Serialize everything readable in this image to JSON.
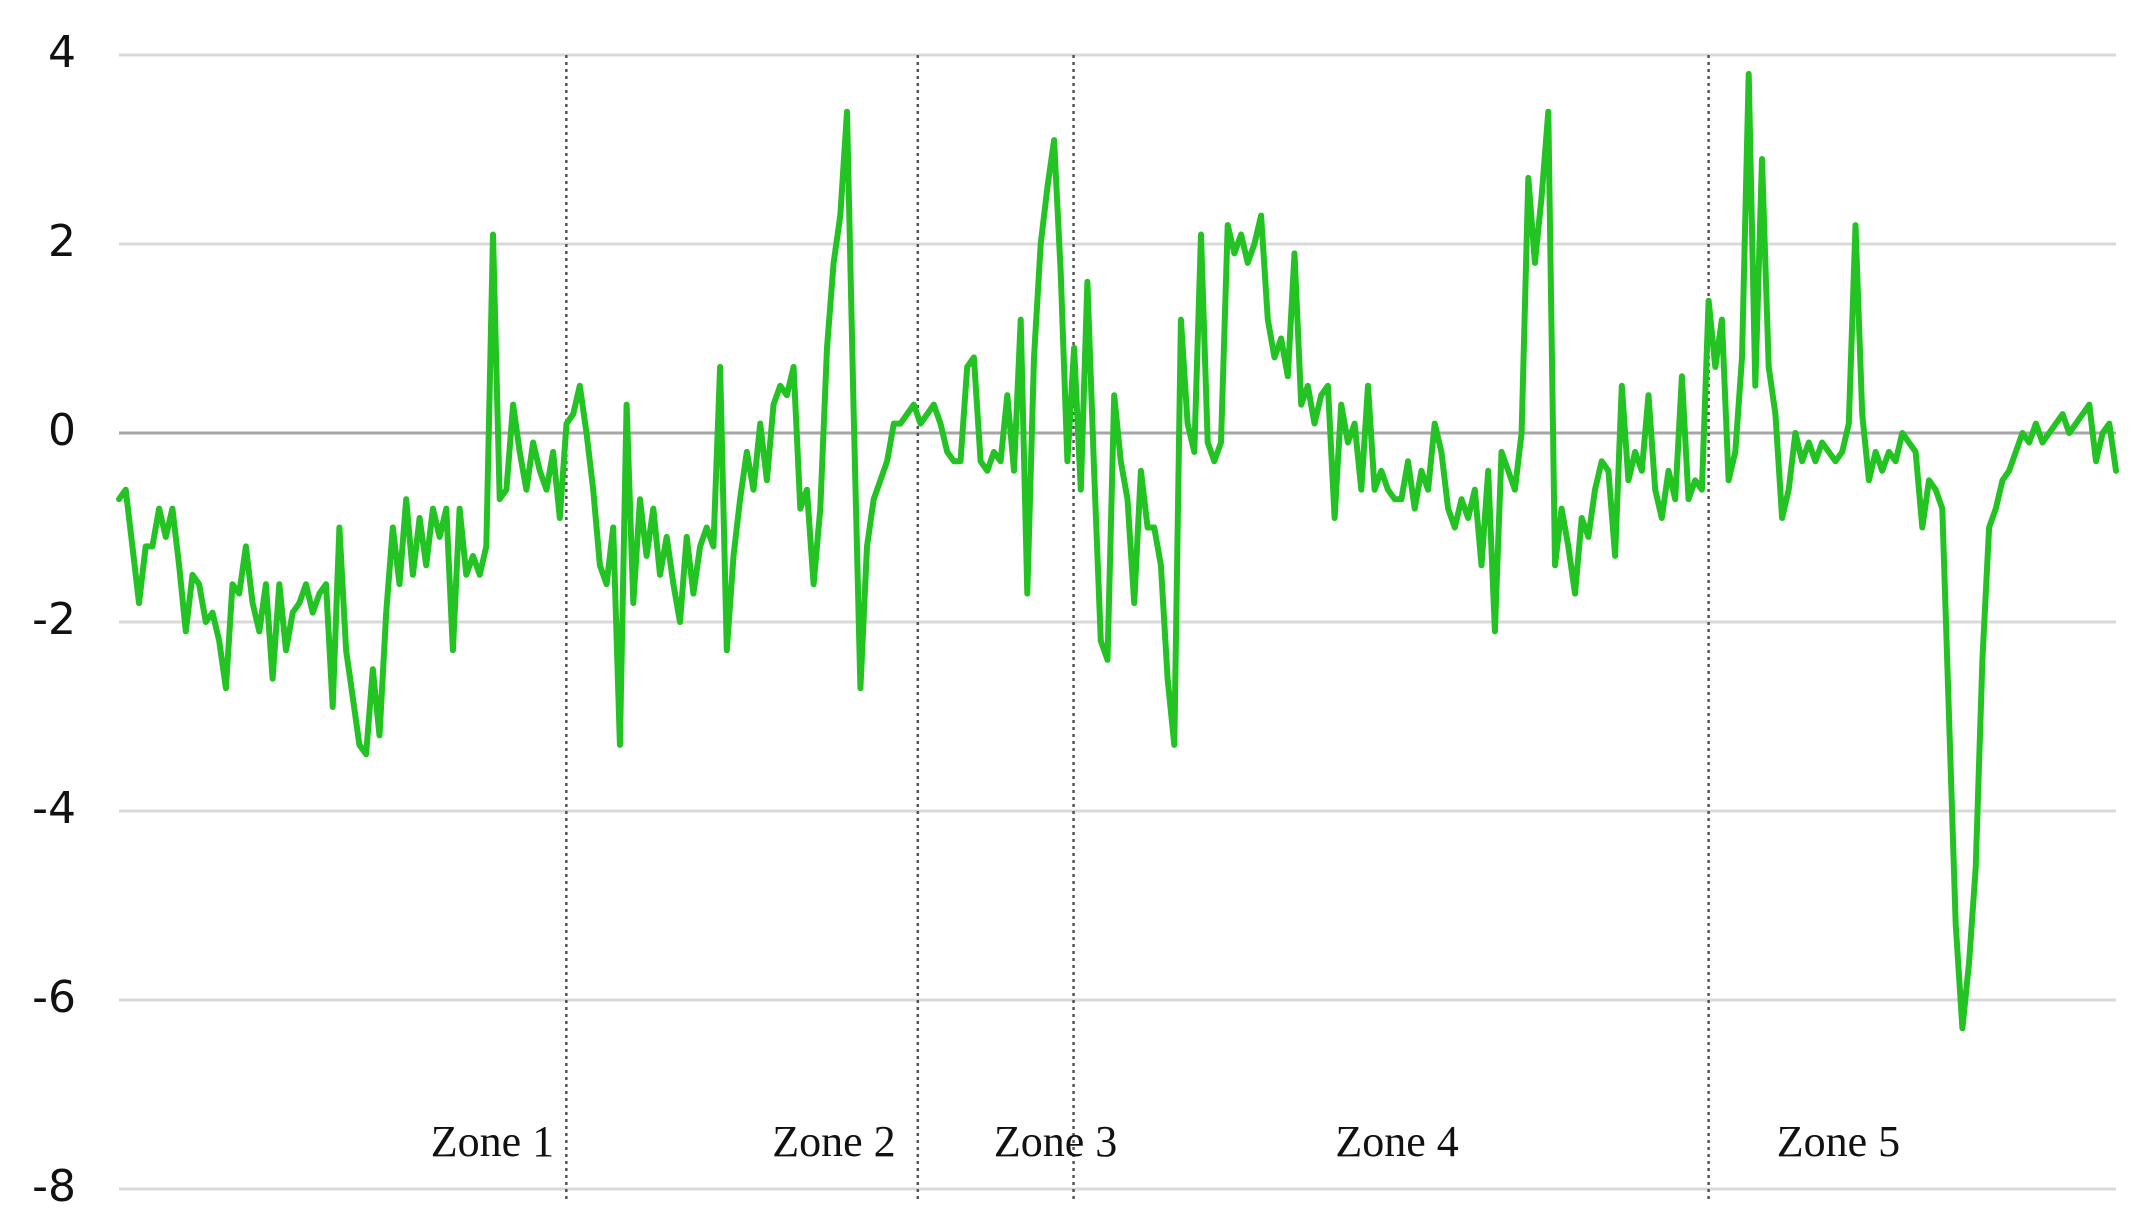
{
  "chart_data": {
    "type": "line",
    "color": "#22c322",
    "ylim": [
      -8,
      4
    ],
    "yticks": [
      -8,
      -6,
      -4,
      -2,
      0,
      2,
      4
    ],
    "grid": true,
    "annotations": [
      "Zone 1",
      "Zone 2",
      "Zone 3",
      "Zone 4",
      "Zone 5"
    ],
    "values": [
      -0.7,
      -0.6,
      -1.2,
      -1.8,
      -1.2,
      -1.2,
      -0.8,
      -1.1,
      -0.8,
      -1.4,
      -2.1,
      -1.5,
      -1.6,
      -2.0,
      -1.9,
      -2.2,
      -2.7,
      -1.6,
      -1.7,
      -1.2,
      -1.8,
      -2.1,
      -1.6,
      -2.6,
      -1.6,
      -2.3,
      -1.9,
      -1.8,
      -1.6,
      -1.9,
      -1.7,
      -1.6,
      -2.9,
      -1.0,
      -2.3,
      -2.8,
      -3.3,
      -3.4,
      -2.5,
      -3.2,
      -1.9,
      -1.0,
      -1.6,
      -0.7,
      -1.5,
      -0.9,
      -1.4,
      -0.8,
      -1.1,
      -0.8,
      -2.3,
      -0.8,
      -1.5,
      -1.3,
      -1.5,
      -1.2,
      2.1,
      -0.7,
      -0.6,
      0.3,
      -0.2,
      -0.6,
      -0.1,
      -0.4,
      -0.6,
      -0.2,
      -0.9,
      0.1,
      0.2,
      0.5,
      0.0,
      -0.6,
      -1.4,
      -1.6,
      -1.0,
      -3.3,
      0.3,
      -1.8,
      -0.7,
      -1.3,
      -0.8,
      -1.5,
      -1.1,
      -1.6,
      -2.0,
      -1.1,
      -1.7,
      -1.2,
      -1.0,
      -1.2,
      0.7,
      -2.3,
      -1.3,
      -0.7,
      -0.2,
      -0.6,
      0.1,
      -0.5,
      0.3,
      0.5,
      0.4,
      0.7,
      -0.8,
      -0.6,
      -1.6,
      -0.8,
      0.9,
      1.8,
      2.3,
      3.4,
      0.2,
      -2.7,
      -1.2,
      -0.7,
      -0.5,
      -0.3,
      0.1,
      0.1,
      0.2,
      0.3,
      0.1,
      0.2,
      0.3,
      0.1,
      -0.2,
      -0.3,
      -0.3,
      0.7,
      0.8,
      -0.3,
      -0.4,
      -0.2,
      -0.3,
      0.4,
      -0.4,
      1.2,
      -1.7,
      0.8,
      2.0,
      2.6,
      3.1,
      1.7,
      -0.3,
      0.9,
      -0.6,
      1.6,
      -0.4,
      -2.2,
      -2.4,
      0.4,
      -0.3,
      -0.7,
      -1.8,
      -0.4,
      -1.0,
      -1.0,
      -1.4,
      -2.6,
      -3.3,
      1.2,
      0.1,
      -0.2,
      2.1,
      -0.1,
      -0.3,
      -0.1,
      2.2,
      1.9,
      2.1,
      1.8,
      2.0,
      2.3,
      1.2,
      0.8,
      1.0,
      0.6,
      1.9,
      0.3,
      0.5,
      0.1,
      0.4,
      0.5,
      -0.9,
      0.3,
      -0.1,
      0.1,
      -0.6,
      0.5,
      -0.6,
      -0.4,
      -0.6,
      -0.7,
      -0.7,
      -0.3,
      -0.8,
      -0.4,
      -0.6,
      0.1,
      -0.2,
      -0.8,
      -1.0,
      -0.7,
      -0.9,
      -0.6,
      -1.4,
      -0.4,
      -2.1,
      -0.2,
      -0.4,
      -0.6,
      0.0,
      2.7,
      1.8,
      2.5,
      3.4,
      -1.4,
      -0.8,
      -1.2,
      -1.7,
      -0.9,
      -1.1,
      -0.6,
      -0.3,
      -0.4,
      -1.3,
      0.5,
      -0.5,
      -0.2,
      -0.4,
      0.4,
      -0.6,
      -0.9,
      -0.4,
      -0.7,
      0.6,
      -0.7,
      -0.5,
      -0.6,
      1.4,
      0.7,
      1.2,
      -0.5,
      -0.2,
      0.8,
      3.8,
      0.5,
      2.9,
      0.7,
      0.2,
      -0.9,
      -0.6,
      0.0,
      -0.3,
      -0.1,
      -0.3,
      -0.1,
      -0.2,
      -0.3,
      -0.2,
      0.1,
      2.2,
      0.2,
      -0.5,
      -0.2,
      -0.4,
      -0.2,
      -0.3,
      0.0,
      -0.1,
      -0.2,
      -1.0,
      -0.5,
      -0.6,
      -0.8,
      -3.0,
      -5.2,
      -6.3,
      -5.6,
      -4.6,
      -2.4,
      -1.0,
      -0.8,
      -0.5,
      -0.4,
      -0.2,
      0.0,
      -0.1,
      0.1,
      -0.1,
      0.0,
      0.1,
      0.2,
      0.0,
      0.1,
      0.2,
      0.3,
      -0.3,
      0.0,
      0.1,
      -0.4
    ]
  }
}
